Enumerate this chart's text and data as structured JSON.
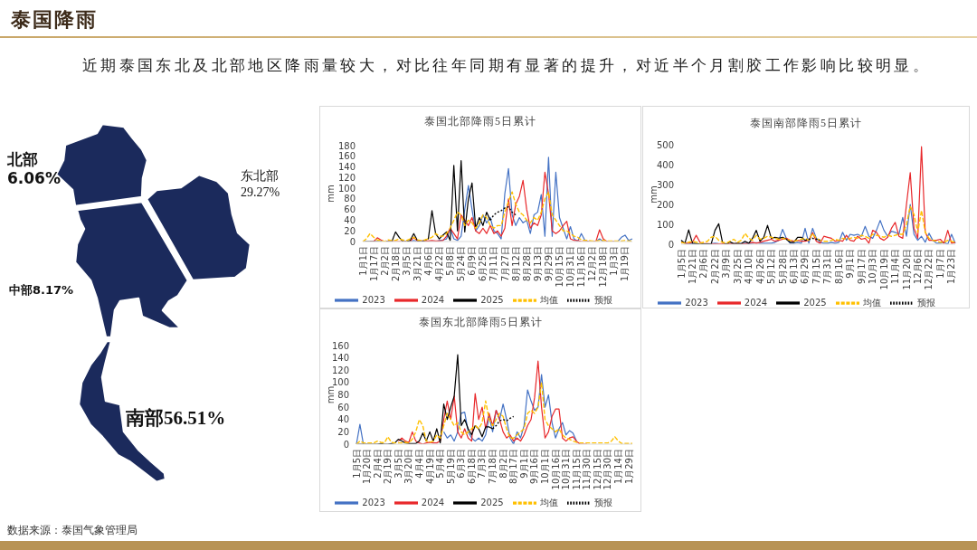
{
  "chart_data": [
    {
      "type": "other",
      "title": "泰国降雨",
      "subtitle": "近期泰国东北及北部地区降雨量较大，对比往年同期有显著的提升，对近半个月割胶工作影响比较明显。",
      "categories": [
        "北部",
        "东北部",
        "中部",
        "南部"
      ],
      "values": [
        6.06,
        29.27,
        8.17,
        56.51
      ],
      "value_labels": [
        "6.06%",
        "29.27%",
        "8.17%",
        "56.51%"
      ],
      "annotations": [
        "数据来源：泰国气象管理局"
      ]
    },
    {
      "type": "line",
      "title": "泰国北部降雨5日累计",
      "ylabel": "mm",
      "legend": "bottom",
      "ylim": [
        0,
        180
      ],
      "yticks": [
        0,
        20,
        40,
        60,
        80,
        100,
        120,
        140,
        160,
        180
      ],
      "categories": [
        "1月1日",
        null,
        null,
        "1月17日",
        null,
        null,
        "2月2日",
        null,
        null,
        "2月18日",
        null,
        null,
        "3月5日",
        null,
        null,
        "3月21日",
        null,
        null,
        "4月6日",
        null,
        null,
        "4月22日",
        null,
        null,
        "5月8日",
        null,
        null,
        "5月24日",
        null,
        null,
        "6月9日",
        null,
        null,
        "6月25日",
        null,
        null,
        "7月11日",
        null,
        null,
        "7月27日",
        null,
        null,
        "8月12日",
        null,
        null,
        "8月28日",
        null,
        null,
        "9月13日",
        null,
        null,
        "9月29日",
        null,
        null,
        "10月15日",
        null,
        null,
        "10月31日",
        null,
        null,
        "11月16日",
        null,
        null,
        "12月2日",
        null,
        null,
        "12月18日",
        null,
        null,
        "1月3日",
        null,
        null,
        "1月19日",
        null,
        null
      ],
      "series": [
        {
          "name": "2023",
          "color": "#4472c4",
          "values": [
            null,
            null,
            null,
            null,
            null,
            null,
            null,
            null,
            null,
            null,
            null,
            null,
            0,
            0,
            2,
            0,
            0,
            0,
            0,
            0,
            0,
            2,
            3,
            5,
            25,
            5,
            2,
            10,
            60,
            105,
            60,
            20,
            30,
            50,
            35,
            45,
            20,
            15,
            5,
            90,
            137,
            50,
            30,
            45,
            35,
            40,
            15,
            50,
            55,
            88,
            10,
            158,
            10,
            130,
            45,
            25,
            5,
            28,
            5,
            0,
            15,
            2,
            0,
            0,
            0,
            5,
            0,
            0,
            0,
            0,
            0,
            8,
            12,
            2,
            5
          ]
        },
        {
          "name": "2024",
          "color": "#e8282b",
          "values": [
            null,
            null,
            0,
            0,
            7,
            3,
            0,
            0,
            0,
            0,
            0,
            0,
            0,
            0,
            8,
            1,
            1,
            1,
            1,
            2,
            1,
            1,
            2,
            10,
            25,
            15,
            5,
            50,
            40,
            30,
            45,
            20,
            15,
            25,
            15,
            30,
            15,
            20,
            10,
            25,
            80,
            30,
            70,
            85,
            115,
            60,
            25,
            35,
            30,
            50,
            130,
            90,
            20,
            15,
            20,
            30,
            38,
            5,
            2,
            2,
            0,
            0,
            0,
            0,
            0,
            22,
            5,
            0,
            0,
            0,
            null,
            null,
            null,
            null,
            null
          ]
        },
        {
          "name": "2025",
          "color": "#000000",
          "values": [
            0,
            0,
            0,
            0,
            0,
            0,
            0,
            0,
            0,
            18,
            8,
            0,
            0,
            2,
            15,
            2,
            0,
            2,
            5,
            58,
            15,
            5,
            12,
            18,
            2,
            143,
            20,
            152,
            18,
            80,
            110,
            25,
            45,
            30,
            55,
            40,
            null,
            null,
            null,
            null,
            null,
            null,
            null,
            null,
            null,
            null,
            null,
            null,
            null,
            null,
            null,
            null,
            null,
            null,
            null,
            null,
            null,
            null,
            null,
            null,
            null,
            null,
            null,
            null,
            null,
            null,
            null,
            null,
            null,
            null,
            null,
            null,
            null,
            null,
            null
          ]
        },
        {
          "name": "均值",
          "color": "#ffc000",
          "line_style": "dashed",
          "values": [
            0,
            5,
            15,
            8,
            3,
            2,
            0,
            3,
            2,
            2,
            5,
            3,
            2,
            5,
            8,
            3,
            2,
            3,
            5,
            8,
            15,
            10,
            10,
            15,
            25,
            40,
            55,
            50,
            30,
            40,
            35,
            25,
            35,
            50,
            45,
            30,
            25,
            30,
            30,
            55,
            75,
            93,
            70,
            55,
            50,
            40,
            35,
            45,
            40,
            55,
            80,
            93,
            50,
            40,
            30,
            20,
            20,
            15,
            10,
            8,
            3,
            2,
            2,
            1,
            1,
            2,
            2,
            1,
            1,
            1,
            1,
            1,
            2,
            1,
            1
          ]
        },
        {
          "name": "预报",
          "color": "#000000",
          "line_style": "dotted",
          "values": [
            null,
            null,
            null,
            null,
            null,
            null,
            null,
            null,
            null,
            null,
            null,
            null,
            null,
            null,
            null,
            null,
            null,
            null,
            null,
            null,
            null,
            null,
            null,
            null,
            null,
            null,
            null,
            null,
            null,
            null,
            null,
            null,
            null,
            null,
            null,
            40,
            50,
            55,
            58,
            63,
            65,
            55,
            50,
            null,
            null,
            null,
            null,
            null,
            null,
            null,
            null,
            null,
            null,
            null,
            null,
            null,
            null,
            null,
            null,
            null,
            null,
            null,
            null,
            null,
            null,
            null,
            null,
            null,
            null,
            null,
            null,
            null,
            null,
            null,
            null
          ]
        }
      ]
    },
    {
      "type": "line",
      "title": "泰国南部降雨5日累计",
      "ylabel": "mm",
      "legend": "bottom",
      "ylim": [
        0,
        500
      ],
      "yticks": [
        0,
        100,
        200,
        300,
        400,
        500
      ],
      "categories": [
        "1月5日",
        null,
        null,
        "1月21日",
        null,
        null,
        "2月6日",
        null,
        null,
        "2月22日",
        null,
        null,
        "3月9日",
        null,
        null,
        "3月25日",
        null,
        null,
        "4月10日",
        null,
        null,
        "4月26日",
        null,
        null,
        "5月12日",
        null,
        null,
        "5月28日",
        null,
        null,
        "6月13日",
        null,
        null,
        "6月29日",
        null,
        null,
        "7月15日",
        null,
        null,
        "7月31日",
        null,
        null,
        "8月16日",
        null,
        null,
        "9月1日",
        null,
        null,
        "9月17日",
        null,
        null,
        "10月3日",
        null,
        null,
        "10月19日",
        null,
        null,
        "11月4日",
        null,
        null,
        "11月20日",
        null,
        null,
        "12月6日",
        null,
        null,
        "12月22日",
        null,
        null,
        "1月7日",
        null,
        null,
        "1月23日",
        null
      ],
      "series": [
        {
          "name": "2023",
          "color": "#4472c4",
          "values": [
            20,
            5,
            2,
            2,
            3,
            2,
            2,
            2,
            3,
            5,
            3,
            2,
            2,
            3,
            2,
            2,
            3,
            5,
            3,
            5,
            8,
            5,
            5,
            5,
            5,
            10,
            20,
            75,
            30,
            5,
            5,
            10,
            5,
            80,
            5,
            80,
            30,
            10,
            5,
            5,
            10,
            5,
            10,
            60,
            20,
            50,
            45,
            50,
            40,
            90,
            40,
            30,
            70,
            120,
            70,
            40,
            65,
            60,
            50,
            135,
            40,
            200,
            50,
            20,
            40,
            10,
            55,
            20,
            5,
            5,
            10,
            0,
            50,
            5
          ]
        },
        {
          "name": "2024",
          "color": "#e8282b",
          "values": [
            10,
            5,
            5,
            10,
            45,
            10,
            3,
            3,
            2,
            2,
            2,
            3,
            2,
            2,
            3,
            3,
            2,
            3,
            5,
            10,
            5,
            10,
            15,
            20,
            25,
            15,
            20,
            25,
            30,
            20,
            15,
            20,
            15,
            15,
            20,
            58,
            15,
            5,
            40,
            35,
            30,
            15,
            20,
            15,
            45,
            20,
            15,
            40,
            25,
            30,
            5,
            70,
            60,
            30,
            20,
            35,
            80,
            110,
            40,
            30,
            200,
            360,
            80,
            30,
            490,
            60,
            20,
            20,
            20,
            25,
            5,
            70,
            5,
            10
          ]
        },
        {
          "name": "2025",
          "color": "#000000",
          "values": [
            20,
            5,
            72,
            5,
            3,
            2,
            2,
            2,
            2,
            70,
            103,
            10,
            0,
            12,
            3,
            5,
            3,
            15,
            5,
            30,
            70,
            15,
            35,
            95,
            30,
            35,
            30,
            35,
            25,
            10,
            10,
            35,
            35,
            20,
            null,
            null,
            null,
            null,
            null,
            null,
            null,
            null,
            null,
            null,
            null,
            null,
            null,
            null,
            null,
            null,
            null,
            null,
            null,
            null,
            null,
            null,
            null,
            null,
            null,
            null,
            null,
            null,
            null,
            null,
            null,
            null,
            null,
            null,
            null,
            null,
            null,
            null,
            null,
            null
          ]
        },
        {
          "name": "均值",
          "color": "#ffc000",
          "line_style": "dashed",
          "values": [
            10,
            5,
            10,
            15,
            10,
            5,
            10,
            15,
            35,
            40,
            20,
            10,
            5,
            15,
            25,
            10,
            20,
            55,
            30,
            20,
            45,
            25,
            30,
            40,
            35,
            30,
            25,
            30,
            25,
            20,
            15,
            20,
            25,
            30,
            20,
            55,
            30,
            20,
            15,
            15,
            20,
            25,
            20,
            30,
            25,
            30,
            35,
            30,
            45,
            40,
            30,
            50,
            45,
            40,
            35,
            45,
            40,
            45,
            50,
            50,
            100,
            190,
            150,
            60,
            170,
            60,
            30,
            20,
            15,
            10,
            10,
            20,
            15,
            10
          ]
        },
        {
          "name": "预报",
          "color": "#000000",
          "line_style": "dotted",
          "values": [
            null,
            null,
            null,
            null,
            null,
            null,
            null,
            null,
            null,
            null,
            null,
            null,
            null,
            null,
            null,
            null,
            null,
            null,
            null,
            null,
            null,
            null,
            null,
            null,
            null,
            null,
            null,
            null,
            null,
            null,
            null,
            null,
            null,
            20,
            25,
            30,
            25,
            20,
            null,
            null,
            null,
            null,
            null,
            null,
            null,
            null,
            null,
            null,
            null,
            null,
            null,
            null,
            null,
            null,
            null,
            null,
            null,
            null,
            null,
            null,
            null,
            null,
            null,
            null,
            null,
            null,
            null,
            null,
            null,
            null,
            null,
            null,
            null,
            null
          ]
        }
      ]
    },
    {
      "type": "line",
      "title": "泰国东北部降雨5日累计",
      "ylabel": "mm",
      "legend": "bottom",
      "ylim": [
        0,
        160
      ],
      "yticks": [
        0,
        20,
        40,
        60,
        80,
        100,
        120,
        140,
        160
      ],
      "categories": [
        "1月5日",
        null,
        null,
        "1月20日",
        null,
        null,
        "2月4日",
        null,
        null,
        "2月19日",
        null,
        null,
        "3月5日",
        null,
        null,
        "3月20日",
        null,
        null,
        "4月4日",
        null,
        null,
        "4月19日",
        null,
        null,
        "5月4日",
        null,
        null,
        "5月19日",
        null,
        null,
        "6月3日",
        null,
        null,
        "6月18日",
        null,
        null,
        "7月3日",
        null,
        null,
        "7月18日",
        null,
        null,
        "8月2日",
        null,
        null,
        "8月17日",
        null,
        null,
        "9月1日",
        null,
        null,
        "9月16日",
        null,
        null,
        "10月1日",
        null,
        null,
        "10月16日",
        null,
        null,
        "10月31日",
        null,
        null,
        "11月15日",
        null,
        null,
        "11月30日",
        null,
        null,
        "12月15日",
        null,
        null,
        "12月30日",
        null,
        null,
        "1月14日",
        null,
        null,
        "1月29日",
        null
      ],
      "series": [
        {
          "name": "2023",
          "color": "#4472c4",
          "values": [
            0,
            32,
            0,
            null,
            null,
            null,
            null,
            null,
            null,
            null,
            null,
            null,
            null,
            null,
            null,
            null,
            null,
            null,
            null,
            null,
            null,
            null,
            null,
            null,
            null,
            20,
            10,
            15,
            5,
            20,
            50,
            52,
            20,
            10,
            5,
            10,
            5,
            15,
            45,
            20,
            55,
            40,
            65,
            40,
            10,
            0,
            20,
            10,
            30,
            88,
            70,
            55,
            60,
            113,
            60,
            80,
            35,
            10,
            25,
            35,
            15,
            22,
            18,
            5,
            null,
            null,
            null,
            null,
            null,
            null,
            null,
            null,
            null,
            null,
            null,
            null,
            null,
            null,
            null,
            null
          ]
        },
        {
          "name": "2024",
          "color": "#e8282b",
          "values": [
            null,
            null,
            null,
            null,
            null,
            null,
            null,
            null,
            null,
            null,
            null,
            null,
            5,
            10,
            5,
            3,
            20,
            5,
            2,
            0,
            2,
            3,
            2,
            2,
            5,
            40,
            70,
            40,
            78,
            20,
            10,
            25,
            10,
            5,
            82,
            40,
            60,
            25,
            50,
            30,
            55,
            40,
            20,
            10,
            15,
            5,
            10,
            5,
            15,
            30,
            40,
            75,
            135,
            60,
            10,
            20,
            45,
            57,
            57,
            10,
            5,
            10,
            12,
            5,
            0,
            0,
            0,
            null,
            null,
            null,
            null,
            null,
            null,
            null,
            null,
            null,
            null,
            null,
            null,
            null
          ]
        },
        {
          "name": "2025",
          "color": "#000000",
          "values": [
            0,
            0,
            0,
            0,
            0,
            0,
            0,
            1,
            0,
            0,
            1,
            2,
            8,
            5,
            2,
            1,
            1,
            1,
            5,
            18,
            5,
            20,
            5,
            25,
            2,
            65,
            40,
            60,
            78,
            145,
            30,
            40,
            25,
            15,
            30,
            25,
            12,
            28,
            28,
            25,
            null,
            null,
            null,
            null,
            null,
            null,
            null,
            null,
            null,
            null,
            null,
            null,
            null,
            null,
            null,
            null,
            null,
            null,
            null,
            null,
            null,
            null,
            null,
            null,
            null,
            null,
            null,
            null,
            null,
            null,
            null,
            null,
            null,
            null,
            null,
            null,
            null,
            null,
            null,
            null
          ]
        },
        {
          "name": "均值",
          "color": "#ffc000",
          "line_style": "dashed",
          "values": [
            0,
            5,
            2,
            2,
            2,
            2,
            5,
            3,
            2,
            12,
            3,
            2,
            2,
            2,
            3,
            2,
            8,
            20,
            40,
            30,
            5,
            3,
            5,
            15,
            10,
            30,
            50,
            40,
            30,
            35,
            20,
            15,
            20,
            25,
            30,
            25,
            35,
            70,
            40,
            30,
            40,
            50,
            45,
            25,
            10,
            10,
            15,
            20,
            25,
            50,
            55,
            50,
            60,
            100,
            40,
            30,
            25,
            20,
            25,
            15,
            10,
            8,
            5,
            3,
            2,
            2,
            2,
            2,
            2,
            2,
            2,
            2,
            2,
            5,
            12,
            5,
            1,
            1,
            1,
            1
          ]
        },
        {
          "name": "预报",
          "color": "#000000",
          "line_style": "dotted",
          "values": [
            null,
            null,
            null,
            null,
            null,
            null,
            null,
            null,
            null,
            null,
            null,
            null,
            null,
            null,
            null,
            null,
            null,
            null,
            null,
            null,
            null,
            null,
            null,
            null,
            null,
            null,
            null,
            null,
            null,
            null,
            null,
            null,
            null,
            null,
            null,
            null,
            null,
            null,
            null,
            25,
            30,
            38,
            40,
            38,
            42,
            45,
            null,
            null,
            null,
            null,
            null,
            null,
            null,
            null,
            null,
            null,
            null,
            null,
            null,
            null,
            null,
            null,
            null,
            null,
            null,
            null,
            null,
            null,
            null,
            null,
            null,
            null,
            null,
            null,
            null,
            null,
            null,
            null,
            null,
            null
          ]
        }
      ]
    }
  ]
}
